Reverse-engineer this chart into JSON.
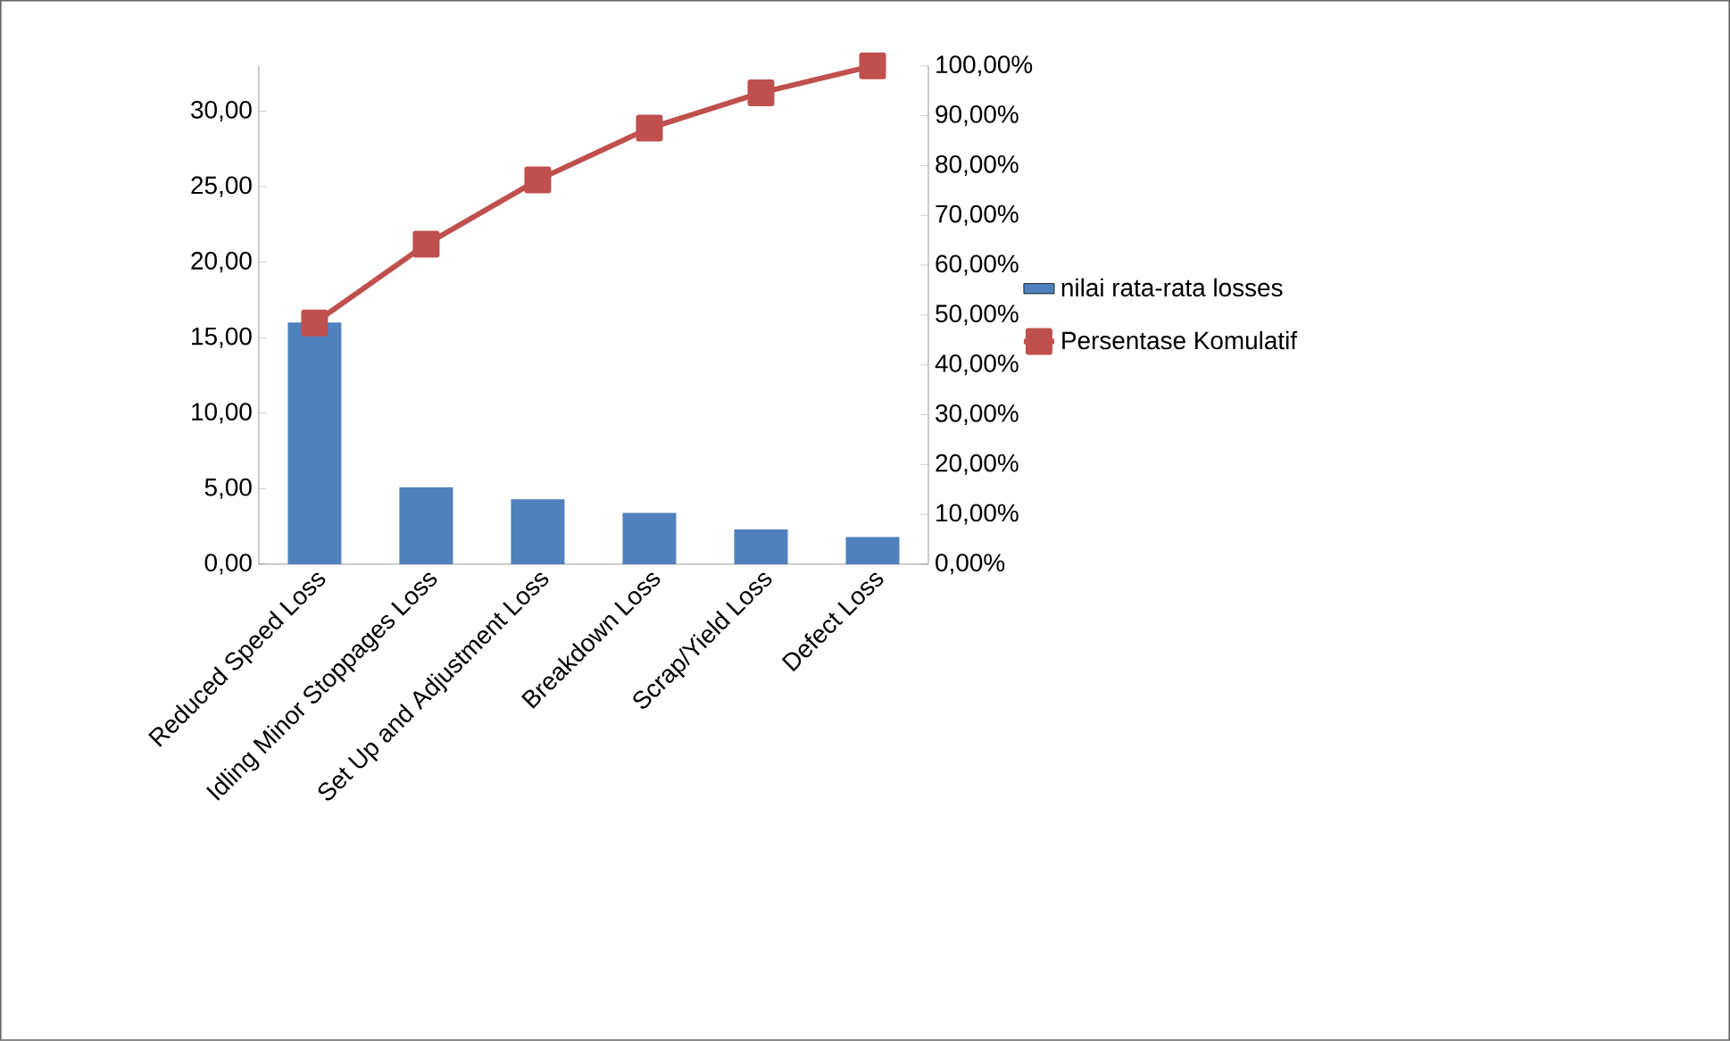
{
  "chart_data": {
    "type": "bar",
    "categories": [
      "Reduced Speed Loss",
      "Idling Minor Stoppages Loss",
      "Set Up and Adjustment Loss",
      "Breakdown Loss",
      "Scrap/Yield Loss",
      "Defect Loss"
    ],
    "series": [
      {
        "name": "nilai rata-rata losses",
        "color": "#4f81bd",
        "values": [
          16.0,
          5.1,
          4.3,
          3.4,
          2.3,
          1.8
        ]
      },
      {
        "name": "Persentase Komulatif",
        "type": "line",
        "axis": "y2",
        "color": "#c0504d",
        "marker": "square",
        "values": [
          48.4,
          64.2,
          77.1,
          87.5,
          94.6,
          100
        ]
      }
    ],
    "ylim": [
      0,
      33
    ],
    "yticks": [
      {
        "value": 0,
        "label": "0,00"
      },
      {
        "value": 5,
        "label": "5,00"
      },
      {
        "value": 10,
        "label": "10,00"
      },
      {
        "value": 15,
        "label": "15,00"
      },
      {
        "value": 20,
        "label": "20,00"
      },
      {
        "value": 25,
        "label": "25,00"
      },
      {
        "value": 30,
        "label": "30,00"
      }
    ],
    "y2lim": [
      0,
      100
    ],
    "y2ticks": [
      {
        "value": 0,
        "label": "0,00%"
      },
      {
        "value": 10,
        "label": "10,00%"
      },
      {
        "value": 20,
        "label": "20,00%"
      },
      {
        "value": 30,
        "label": "30,00%"
      },
      {
        "value": 40,
        "label": "40,00%"
      },
      {
        "value": 50,
        "label": "50,00%"
      },
      {
        "value": 60,
        "label": "60,00%"
      },
      {
        "value": 70,
        "label": "70,00%"
      },
      {
        "value": 80,
        "label": "80,00%"
      },
      {
        "value": 90,
        "label": "90,00%"
      },
      {
        "value": 100,
        "label": "100,00%"
      }
    ],
    "legend": "right",
    "grid": false
  }
}
